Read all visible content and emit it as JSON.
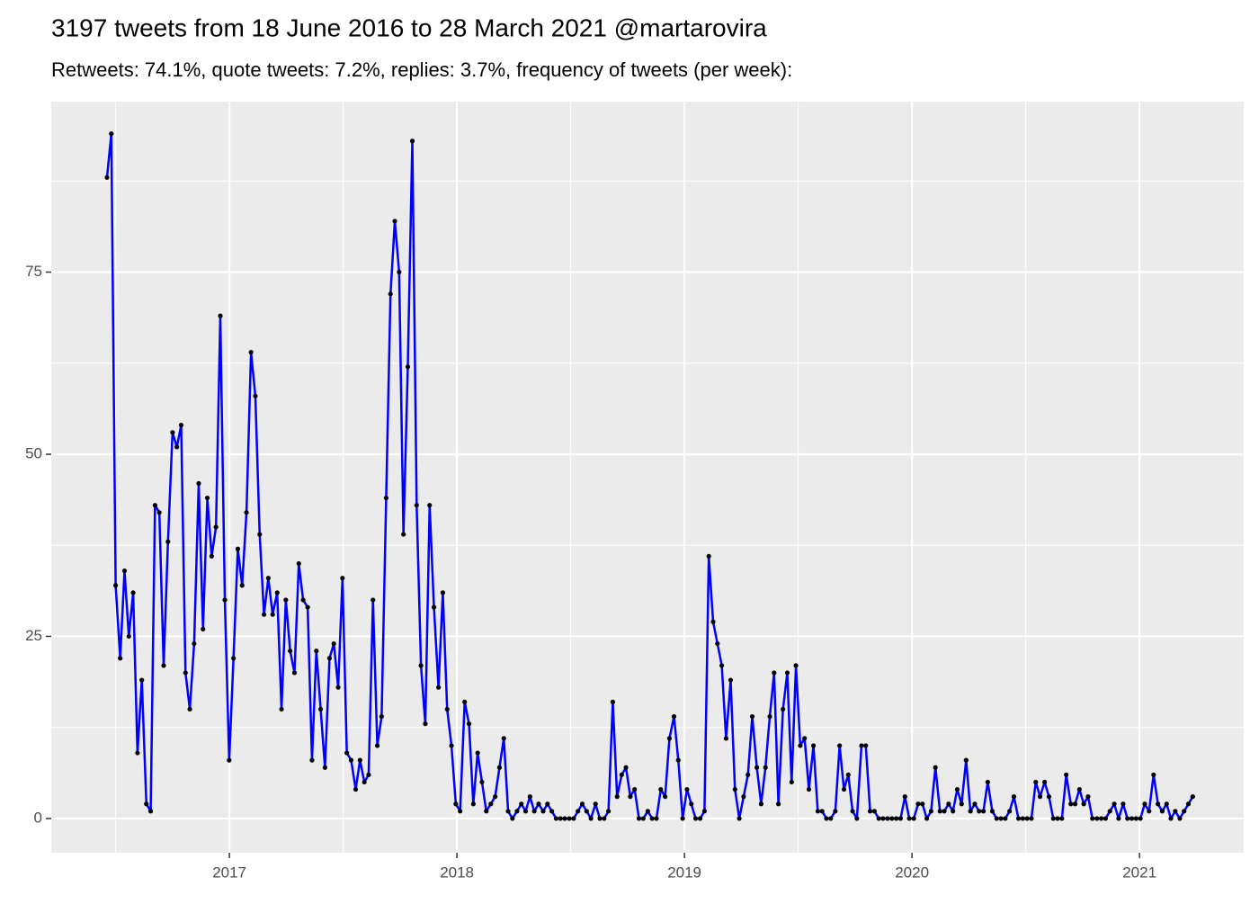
{
  "chart_data": {
    "type": "line",
    "title": "3197 tweets from 18 June 2016 to 28 March 2021 @martarovira",
    "subtitle": "Retweets: 74.1%, quote tweets: 7.2%, replies: 3.7%, frequency of tweets (per week):",
    "x": [
      2016.462,
      2016.481,
      2016.5,
      2016.52,
      2016.539,
      2016.558,
      2016.577,
      2016.596,
      2016.615,
      2016.635,
      2016.654,
      2016.673,
      2016.692,
      2016.711,
      2016.73,
      2016.75,
      2016.769,
      2016.788,
      2016.807,
      2016.826,
      2016.845,
      2016.865,
      2016.884,
      2016.903,
      2016.922,
      2016.941,
      2016.96,
      2016.98,
      2016.999,
      2017.018,
      2017.037,
      2017.056,
      2017.075,
      2017.095,
      2017.114,
      2017.133,
      2017.152,
      2017.171,
      2017.19,
      2017.21,
      2017.229,
      2017.248,
      2017.267,
      2017.286,
      2017.305,
      2017.324,
      2017.344,
      2017.363,
      2017.382,
      2017.401,
      2017.42,
      2017.44,
      2017.459,
      2017.478,
      2017.497,
      2017.516,
      2017.535,
      2017.555,
      2017.574,
      2017.593,
      2017.612,
      2017.631,
      2017.65,
      2017.669,
      2017.689,
      2017.708,
      2017.727,
      2017.746,
      2017.765,
      2017.784,
      2017.804,
      2017.823,
      2017.842,
      2017.861,
      2017.88,
      2017.899,
      2017.919,
      2017.938,
      2017.957,
      2017.976,
      2017.995,
      2018.014,
      2018.034,
      2018.053,
      2018.072,
      2018.091,
      2018.11,
      2018.129,
      2018.149,
      2018.168,
      2018.187,
      2018.206,
      2018.225,
      2018.244,
      2018.264,
      2018.283,
      2018.302,
      2018.321,
      2018.34,
      2018.359,
      2018.379,
      2018.398,
      2018.417,
      2018.436,
      2018.455,
      2018.474,
      2018.494,
      2018.513,
      2018.532,
      2018.551,
      2018.57,
      2018.589,
      2018.609,
      2018.628,
      2018.647,
      2018.666,
      2018.685,
      2018.704,
      2018.724,
      2018.743,
      2018.762,
      2018.781,
      2018.8,
      2018.819,
      2018.839,
      2018.858,
      2018.877,
      2018.896,
      2018.915,
      2018.934,
      2018.954,
      2018.973,
      2018.992,
      2019.011,
      2019.03,
      2019.049,
      2019.069,
      2019.088,
      2019.107,
      2019.126,
      2019.145,
      2019.164,
      2019.183,
      2019.203,
      2019.222,
      2019.241,
      2019.26,
      2019.279,
      2019.298,
      2019.318,
      2019.337,
      2019.356,
      2019.375,
      2019.394,
      2019.413,
      2019.433,
      2019.452,
      2019.471,
      2019.49,
      2019.509,
      2019.528,
      2019.547,
      2019.567,
      2019.586,
      2019.605,
      2019.624,
      2019.643,
      2019.663,
      2019.682,
      2019.701,
      2019.72,
      2019.739,
      2019.758,
      2019.778,
      2019.797,
      2019.816,
      2019.835,
      2019.854,
      2019.873,
      2019.893,
      2019.912,
      2019.931,
      2019.95,
      2019.969,
      2019.988,
      2020.008,
      2020.027,
      2020.046,
      2020.065,
      2020.084,
      2020.103,
      2020.123,
      2020.142,
      2020.161,
      2020.18,
      2020.199,
      2020.218,
      2020.238,
      2020.257,
      2020.276,
      2020.295,
      2020.314,
      2020.333,
      2020.353,
      2020.372,
      2020.391,
      2020.41,
      2020.429,
      2020.448,
      2020.468,
      2020.487,
      2020.506,
      2020.525,
      2020.544,
      2020.563,
      2020.583,
      2020.602,
      2020.621,
      2020.64,
      2020.659,
      2020.678,
      2020.698,
      2020.717,
      2020.736,
      2020.755,
      2020.774,
      2020.793,
      2020.813,
      2020.832,
      2020.851,
      2020.87,
      2020.889,
      2020.908,
      2020.928,
      2020.947,
      2020.966,
      2020.985,
      2021.004,
      2021.023,
      2021.042,
      2021.062,
      2021.081,
      2021.1,
      2021.119,
      2021.138,
      2021.157,
      2021.177,
      2021.196,
      2021.215,
      2021.234
    ],
    "series": [
      {
        "color": "#0000ff",
        "point_color": "#000000",
        "values": [
          88,
          94,
          32,
          22,
          34,
          25,
          31,
          9,
          19,
          2,
          1,
          43,
          42,
          21,
          38,
          53,
          51,
          54,
          20,
          15,
          24,
          46,
          26,
          44,
          36,
          40,
          69,
          30,
          8,
          22,
          37,
          32,
          42,
          64,
          58,
          39,
          28,
          33,
          28,
          31,
          15,
          30,
          23,
          20,
          35,
          30,
          29,
          8,
          23,
          15,
          7,
          22,
          24,
          18,
          33,
          9,
          8,
          4,
          8,
          5,
          6,
          30,
          10,
          14,
          44,
          72,
          82,
          75,
          39,
          62,
          93,
          43,
          21,
          13,
          43,
          29,
          18,
          31,
          15,
          10,
          2,
          1,
          16,
          13,
          2,
          9,
          5,
          1,
          2,
          3,
          7,
          11,
          1,
          0,
          1,
          2,
          1,
          3,
          1,
          2,
          1,
          2,
          1,
          0,
          0,
          0,
          0,
          0,
          1,
          2,
          1,
          0,
          2,
          0,
          0,
          1,
          16,
          3,
          6,
          7,
          3,
          4,
          0,
          0,
          1,
          0,
          0,
          4,
          3,
          11,
          14,
          8,
          0,
          4,
          2,
          0,
          0,
          1,
          36,
          27,
          24,
          21,
          11,
          19,
          4,
          0,
          3,
          6,
          14,
          7,
          2,
          7,
          14,
          20,
          2,
          15,
          20,
          5,
          21,
          10,
          11,
          4,
          10,
          1,
          1,
          0,
          0,
          1,
          10,
          4,
          6,
          1,
          0,
          10,
          10,
          1,
          1,
          0,
          0,
          0,
          0,
          0,
          0,
          3,
          0,
          0,
          2,
          2,
          0,
          1,
          7,
          1,
          1,
          2,
          1,
          4,
          2,
          8,
          1,
          2,
          1,
          1,
          5,
          1,
          0,
          0,
          0,
          1,
          3,
          0,
          0,
          0,
          0,
          5,
          3,
          5,
          3,
          0,
          0,
          0,
          6,
          2,
          2,
          4,
          2,
          3,
          0,
          0,
          0,
          0,
          1,
          2,
          0,
          2,
          0,
          0,
          0,
          0,
          2,
          1,
          6,
          2,
          1,
          2,
          0,
          1,
          0,
          1,
          2,
          3
        ]
      }
    ],
    "xlim": [
      2016.217,
      2021.458
    ],
    "ylim": [
      -4.7,
      98.4
    ],
    "xticks": [
      2017,
      2018,
      2019,
      2020,
      2021
    ],
    "yticks": [
      0,
      25,
      50,
      75
    ],
    "x_minor_ticks": [
      2016.5,
      2017.5,
      2018.5,
      2019.5,
      2020.5
    ],
    "y_minor_ticks": [
      12.5,
      37.5,
      62.5,
      87.5
    ],
    "grid": true,
    "panel_color": "#ebebeb"
  }
}
